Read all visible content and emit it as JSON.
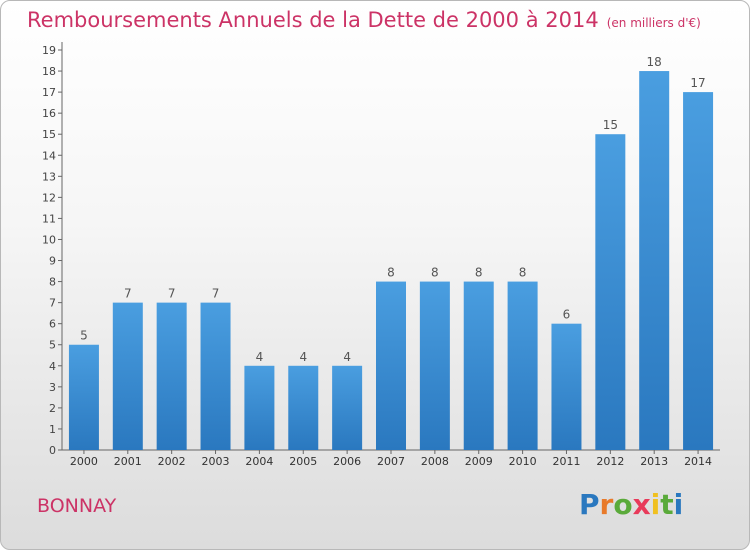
{
  "chart_data": {
    "type": "bar",
    "title": "Remboursements Annuels de la Dette de 2000 à 2014",
    "subtitle": "(en milliers d'€)",
    "categories": [
      "2000",
      "2001",
      "2002",
      "2003",
      "2004",
      "2005",
      "2006",
      "2007",
      "2008",
      "2009",
      "2010",
      "2011",
      "2012",
      "2013",
      "2014"
    ],
    "values": [
      5,
      7,
      7,
      7,
      4,
      4,
      4,
      8,
      8,
      8,
      8,
      6,
      15,
      18,
      17
    ],
    "ylim": [
      0,
      19
    ],
    "yticks": [
      0,
      1,
      2,
      3,
      4,
      5,
      6,
      7,
      8,
      9,
      10,
      11,
      12,
      13,
      14,
      15,
      16,
      17,
      18,
      19
    ],
    "grid": false,
    "bar_color": "#4a9ee0",
    "bar_color_dark": "#2a78bf"
  },
  "footer": {
    "commune": "BONNAY",
    "logo": {
      "letters": [
        "P",
        "r",
        "o",
        "x",
        "i",
        "t",
        "i"
      ],
      "colors": [
        "#2a78bf",
        "#e87a2a",
        "#5aaa3a",
        "#e83a5a",
        "#f0c020",
        "#5aaa3a",
        "#2a78bf"
      ]
    }
  }
}
